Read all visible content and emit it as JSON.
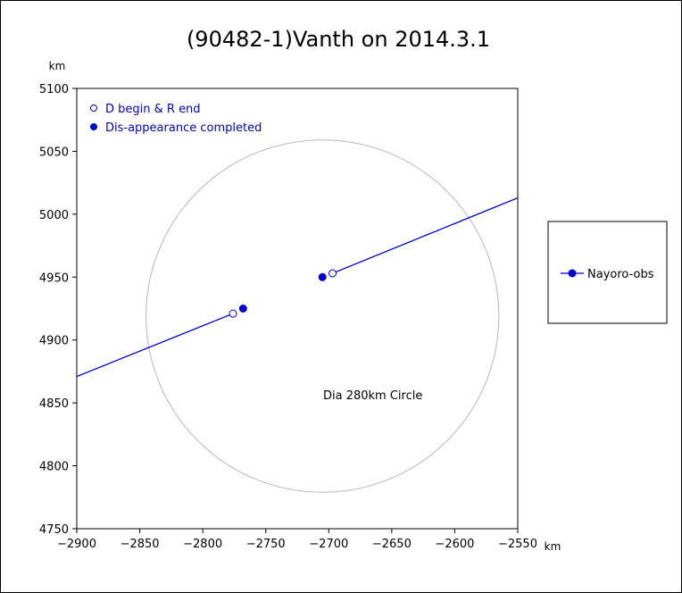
{
  "chart_data": {
    "type": "scatter",
    "title": "(90482-1)Vanth on 2014.3.1",
    "xlabel": "km",
    "ylabel": "km",
    "xlim": [
      -2900,
      -2550
    ],
    "ylim": [
      4750,
      5100
    ],
    "x_ticks": [
      -2900,
      -2850,
      -2800,
      -2750,
      -2700,
      -2650,
      -2600,
      -2550
    ],
    "y_ticks": [
      4750,
      4800,
      4850,
      4900,
      4950,
      5000,
      5050,
      5100
    ],
    "grid": false,
    "circle": {
      "label": "Dia 280km Circle",
      "center": [
        -2705,
        4919
      ],
      "radius_km": 140,
      "label_anchor": [
        -2665,
        4853
      ]
    },
    "series": [
      {
        "name": "Nayoro-obs",
        "color": "#0000cc",
        "segments": [
          {
            "points": [
              [
                -2900,
                4871
              ],
              [
                -2776,
                4921
              ]
            ]
          },
          {
            "points": [
              [
                -2697,
                4953
              ],
              [
                -2550,
                5013
              ]
            ]
          }
        ],
        "markers": [
          {
            "x": -2776,
            "y": 4921,
            "kind": "D begin & R end"
          },
          {
            "x": -2768,
            "y": 4925,
            "kind": "Dis-appearance completed"
          },
          {
            "x": -2705,
            "y": 4950,
            "kind": "Dis-appearance completed"
          },
          {
            "x": -2697,
            "y": 4953,
            "kind": "D begin & R end"
          }
        ]
      }
    ],
    "marker_legend": [
      {
        "label": "D begin & R end",
        "symbol": "open"
      },
      {
        "label": "Dis-appearance completed",
        "symbol": "filled"
      }
    ],
    "legend_position": "right"
  }
}
